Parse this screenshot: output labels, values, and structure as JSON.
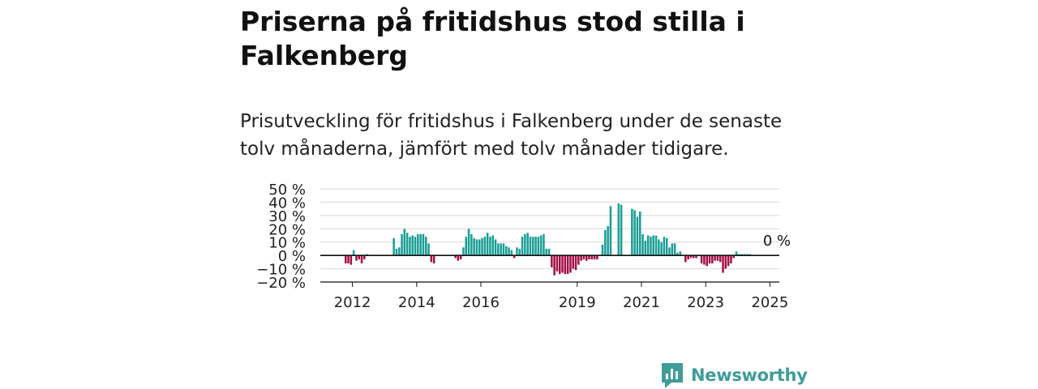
{
  "header": {
    "title": "Priserna på fritidshus stod stilla i Falkenberg",
    "subtitle": "Prisutveckling för fritidshus i Falkenberg under de senaste tolv månaderna, jämfört med tolv månader tidigare."
  },
  "brand": {
    "name": "Newsworthy"
  },
  "colors": {
    "positive": "#1a9e96",
    "negative": "#a50f45",
    "gridline": "#d8d8d8",
    "axis": "#111111",
    "brand": "#3f9c98"
  },
  "chart_data": {
    "type": "bar",
    "title": "",
    "xlabel": "",
    "ylabel": "",
    "ylim": [
      -20,
      50
    ],
    "yticks": [
      -20,
      -10,
      0,
      10,
      20,
      30,
      40,
      50
    ],
    "ytick_labels": [
      "−20 %",
      "−10 %",
      "0 %",
      "10 %",
      "20 %",
      "30 %",
      "40 %",
      "50 %"
    ],
    "xlim": [
      "2011-01",
      "2025-12"
    ],
    "xtick_labels": [
      "2012",
      "2014",
      "2016",
      "2019",
      "2021",
      "2023",
      "2025"
    ],
    "xtick_positions": [
      "2012-01",
      "2014-01",
      "2016-01",
      "2019-01",
      "2021-01",
      "2023-01",
      "2025-01"
    ],
    "grid": true,
    "annotation": {
      "text": "0 %",
      "x": "2025-03",
      "y": 0
    },
    "series": [
      {
        "values": [
          {
            "x": "2011-10",
            "y": -6
          },
          {
            "x": "2011-11",
            "y": -6
          },
          {
            "x": "2011-12",
            "y": -7
          },
          {
            "x": "2012-01",
            "y": 4
          },
          {
            "x": "2012-02",
            "y": -4
          },
          {
            "x": "2012-03",
            "y": -3
          },
          {
            "x": "2012-04",
            "y": -6
          },
          {
            "x": "2012-05",
            "y": -3
          },
          {
            "x": "2012-06",
            "y": 1
          },
          {
            "x": "2013-04",
            "y": 13
          },
          {
            "x": "2013-05",
            "y": 5
          },
          {
            "x": "2013-06",
            "y": 6
          },
          {
            "x": "2013-07",
            "y": 16
          },
          {
            "x": "2013-08",
            "y": 20
          },
          {
            "x": "2013-09",
            "y": 17
          },
          {
            "x": "2013-10",
            "y": 14
          },
          {
            "x": "2013-11",
            "y": 15
          },
          {
            "x": "2013-12",
            "y": 14
          },
          {
            "x": "2014-01",
            "y": 16
          },
          {
            "x": "2014-02",
            "y": 16
          },
          {
            "x": "2014-03",
            "y": 16
          },
          {
            "x": "2014-04",
            "y": 14
          },
          {
            "x": "2014-05",
            "y": 9
          },
          {
            "x": "2014-06",
            "y": -5
          },
          {
            "x": "2014-07",
            "y": -6
          },
          {
            "x": "2015-03",
            "y": -2
          },
          {
            "x": "2015-04",
            "y": -4
          },
          {
            "x": "2015-05",
            "y": -3
          },
          {
            "x": "2015-06",
            "y": 6
          },
          {
            "x": "2015-07",
            "y": 14
          },
          {
            "x": "2015-08",
            "y": 20
          },
          {
            "x": "2015-09",
            "y": 16
          },
          {
            "x": "2015-10",
            "y": 13
          },
          {
            "x": "2015-11",
            "y": 12
          },
          {
            "x": "2015-12",
            "y": 12
          },
          {
            "x": "2016-01",
            "y": 13
          },
          {
            "x": "2016-02",
            "y": 14
          },
          {
            "x": "2016-03",
            "y": 17
          },
          {
            "x": "2016-04",
            "y": 14
          },
          {
            "x": "2016-05",
            "y": 15
          },
          {
            "x": "2016-06",
            "y": 12
          },
          {
            "x": "2016-07",
            "y": 9
          },
          {
            "x": "2016-08",
            "y": 9
          },
          {
            "x": "2016-09",
            "y": 9
          },
          {
            "x": "2016-10",
            "y": 7
          },
          {
            "x": "2016-11",
            "y": 6
          },
          {
            "x": "2016-12",
            "y": 4
          },
          {
            "x": "2017-01",
            "y": -2
          },
          {
            "x": "2017-02",
            "y": 6
          },
          {
            "x": "2017-03",
            "y": 5
          },
          {
            "x": "2017-04",
            "y": 14
          },
          {
            "x": "2017-05",
            "y": 16
          },
          {
            "x": "2017-06",
            "y": 17
          },
          {
            "x": "2017-07",
            "y": 14
          },
          {
            "x": "2017-08",
            "y": 14
          },
          {
            "x": "2017-09",
            "y": 14
          },
          {
            "x": "2017-10",
            "y": 14
          },
          {
            "x": "2017-11",
            "y": 15
          },
          {
            "x": "2017-12",
            "y": 16
          },
          {
            "x": "2018-01",
            "y": 5
          },
          {
            "x": "2018-02",
            "y": 5
          },
          {
            "x": "2018-03",
            "y": -9
          },
          {
            "x": "2018-04",
            "y": -15
          },
          {
            "x": "2018-05",
            "y": -12
          },
          {
            "x": "2018-06",
            "y": -14
          },
          {
            "x": "2018-07",
            "y": -13
          },
          {
            "x": "2018-08",
            "y": -14
          },
          {
            "x": "2018-09",
            "y": -14
          },
          {
            "x": "2018-10",
            "y": -13
          },
          {
            "x": "2018-11",
            "y": -10
          },
          {
            "x": "2018-12",
            "y": -11
          },
          {
            "x": "2019-01",
            "y": -7
          },
          {
            "x": "2019-02",
            "y": -4
          },
          {
            "x": "2019-03",
            "y": -3
          },
          {
            "x": "2019-04",
            "y": -4
          },
          {
            "x": "2019-05",
            "y": -3
          },
          {
            "x": "2019-06",
            "y": -3
          },
          {
            "x": "2019-07",
            "y": -3
          },
          {
            "x": "2019-08",
            "y": -3
          },
          {
            "x": "2019-10",
            "y": 8
          },
          {
            "x": "2019-11",
            "y": 19
          },
          {
            "x": "2019-12",
            "y": 22
          },
          {
            "x": "2020-01",
            "y": 37
          },
          {
            "x": "2020-04",
            "y": 39
          },
          {
            "x": "2020-05",
            "y": 38
          },
          {
            "x": "2020-09",
            "y": 35
          },
          {
            "x": "2020-10",
            "y": 34
          },
          {
            "x": "2020-11",
            "y": 29
          },
          {
            "x": "2020-12",
            "y": 33
          },
          {
            "x": "2021-01",
            "y": 16
          },
          {
            "x": "2021-02",
            "y": 11
          },
          {
            "x": "2021-03",
            "y": 15
          },
          {
            "x": "2021-04",
            "y": 14
          },
          {
            "x": "2021-05",
            "y": 15
          },
          {
            "x": "2021-06",
            "y": 15
          },
          {
            "x": "2021-07",
            "y": 12
          },
          {
            "x": "2021-08",
            "y": 10
          },
          {
            "x": "2021-09",
            "y": 14
          },
          {
            "x": "2021-10",
            "y": 13
          },
          {
            "x": "2021-11",
            "y": 6
          },
          {
            "x": "2021-12",
            "y": 9
          },
          {
            "x": "2022-01",
            "y": 9
          },
          {
            "x": "2022-02",
            "y": 2
          },
          {
            "x": "2022-03",
            "y": 3
          },
          {
            "x": "2022-05",
            "y": -5
          },
          {
            "x": "2022-06",
            "y": -3
          },
          {
            "x": "2022-07",
            "y": -2
          },
          {
            "x": "2022-08",
            "y": -2
          },
          {
            "x": "2022-09",
            "y": -2
          },
          {
            "x": "2022-11",
            "y": -6
          },
          {
            "x": "2022-12",
            "y": -7
          },
          {
            "x": "2023-01",
            "y": -8
          },
          {
            "x": "2023-02",
            "y": -6
          },
          {
            "x": "2023-03",
            "y": -6
          },
          {
            "x": "2023-04",
            "y": -4
          },
          {
            "x": "2023-05",
            "y": -4
          },
          {
            "x": "2023-06",
            "y": -5
          },
          {
            "x": "2023-07",
            "y": -13
          },
          {
            "x": "2023-08",
            "y": -10
          },
          {
            "x": "2023-09",
            "y": -8
          },
          {
            "x": "2023-10",
            "y": -6
          },
          {
            "x": "2023-11",
            "y": -2
          },
          {
            "x": "2023-12",
            "y": 3
          },
          {
            "x": "2024-01",
            "y": 1
          },
          {
            "x": "2024-02",
            "y": 1
          },
          {
            "x": "2024-03",
            "y": 1
          },
          {
            "x": "2024-04",
            "y": 1
          },
          {
            "x": "2024-05",
            "y": 1
          }
        ]
      }
    ]
  }
}
